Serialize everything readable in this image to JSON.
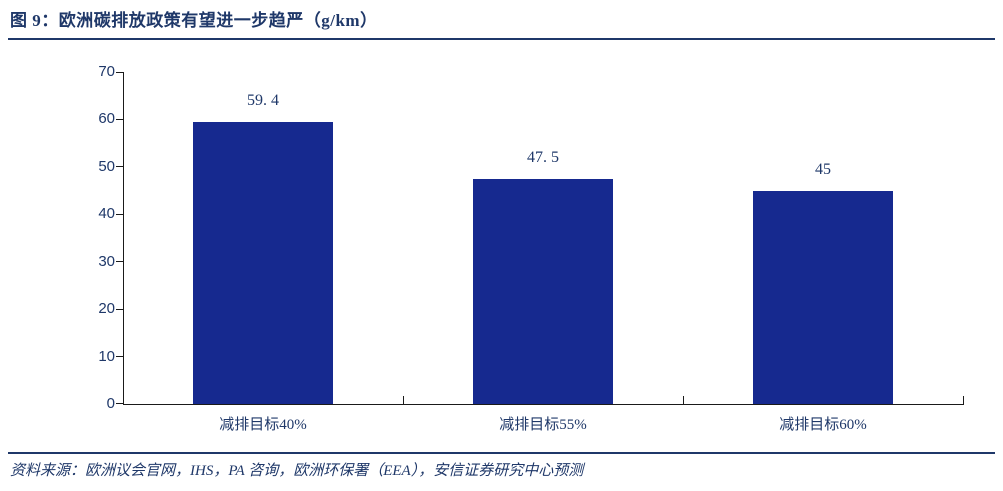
{
  "header": {
    "title": "图 9：欧洲碳排放政策有望进一步趋严（g/km）"
  },
  "footer": {
    "source": "资料来源：欧洲议会官网，IHS，PA 咨询，欧洲环保署（EEA），安信证券研究中心预测"
  },
  "colors": {
    "bar": "#16298F",
    "ink": "#1F3869",
    "axis": "#1a1a1a",
    "rule": "#1F3869"
  },
  "chart_data": {
    "type": "bar",
    "title": "图 9：欧洲碳排放政策有望进一步趋严（g/km）",
    "categories": [
      "减排目标40%",
      "减排目标55%",
      "减排目标60%"
    ],
    "values": [
      59.4,
      47.5,
      45
    ],
    "value_labels": [
      "59. 4",
      "47. 5",
      "45"
    ],
    "xlabel": "",
    "ylabel": "",
    "ylim": [
      0,
      70
    ],
    "yticks": [
      0,
      10,
      20,
      30,
      40,
      50,
      60,
      70
    ],
    "grid": false,
    "legend": "none",
    "bar_color": "#16298F",
    "units": "g/km"
  }
}
